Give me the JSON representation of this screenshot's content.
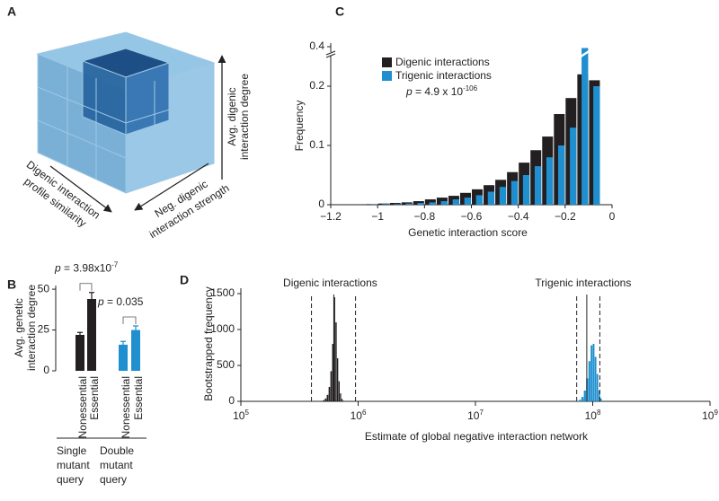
{
  "panel_labels": [
    "A",
    "B",
    "C",
    "D"
  ],
  "cube": {
    "vertical_axis": [
      "Avg. digenic",
      "interaction degree"
    ],
    "left_axis": [
      "Digenic interaction",
      "profile similarity"
    ],
    "right_axis": [
      "Neg. digenic",
      "interaction strength"
    ]
  },
  "chart_data": [
    {
      "type": "bar",
      "ylabel": [
        "Avg. genetic",
        "interaction degree"
      ],
      "ylim": [
        0,
        55
      ],
      "yticks": [
        0,
        25,
        50
      ],
      "groups": [
        {
          "label": [
            "Single",
            "mutant",
            "query"
          ],
          "categories": [
            "Nonessential",
            "Essential"
          ],
          "values": [
            22,
            44
          ],
          "errors": [
            1.5,
            4
          ],
          "color": "#231f20",
          "annotation": {
            "symbol": "p",
            "text": " = 3.98x10",
            "exponent": "-7"
          }
        },
        {
          "label": [
            "Double",
            "mutant",
            "query"
          ],
          "categories": [
            "Nonessential",
            "Essential"
          ],
          "values": [
            16,
            25
          ],
          "errors": [
            2,
            2.5
          ],
          "color": "#1f8fd0",
          "annotation": {
            "symbol": "p",
            "text": " = 0.035"
          }
        }
      ]
    },
    {
      "type": "histogram",
      "xlabel": "Genetic interaction score",
      "ylabel": "Frequency",
      "bins": [
        -1.05,
        -1,
        -0.95,
        -0.9,
        -0.85,
        -0.8,
        -0.75,
        -0.7,
        -0.65,
        -0.6,
        -0.55,
        -0.5,
        -0.45,
        -0.4,
        -0.35,
        -0.3,
        -0.25,
        -0.2,
        -0.15,
        -0.1,
        -0.05
      ],
      "series": [
        {
          "name": "Digenic interactions",
          "color": "#231f20",
          "values": [
            0.001,
            0.002,
            0.003,
            0.004,
            0.006,
            0.009,
            0.012,
            0.015,
            0.02,
            0.026,
            0.033,
            0.042,
            0.055,
            0.071,
            0.092,
            0.115,
            0.153,
            0.18,
            0.22,
            0.21
          ]
        },
        {
          "name": "Trigenic interactions",
          "color": "#1f8fd0",
          "values": [
            0.0005,
            0.001,
            0.001,
            0.002,
            0.003,
            0.004,
            0.006,
            0.009,
            0.012,
            0.016,
            0.022,
            0.03,
            0.04,
            0.05,
            0.065,
            0.08,
            0.1,
            0.13,
            0.38,
            0.2
          ]
        }
      ],
      "xlim": [
        -1.2,
        0
      ],
      "xticks": [
        {
          "value": -1.2,
          "label": "−1.2"
        },
        {
          "value": -1,
          "label": "−1"
        },
        {
          "value": -0.8,
          "label": "−0.8"
        },
        {
          "value": -0.6,
          "label": "−0.6"
        },
        {
          "value": -0.4,
          "label": "−0.4"
        },
        {
          "value": -0.2,
          "label": "−0.2"
        },
        0
      ],
      "ylim": [
        0,
        0.4
      ],
      "yticks": [
        0,
        0.1,
        0.2,
        0.4
      ],
      "y_break": true,
      "annotation": {
        "symbol": "p",
        "text": " = 4.9 x 10",
        "exponent": "-106"
      }
    },
    {
      "type": "histogram",
      "xscale": "log",
      "xlabel": "Estimate of global negative interaction network",
      "ylabel": "Bootstrapped frequency",
      "xlim": [
        100000,
        1000000000
      ],
      "xticks": [
        {
          "value": 100000,
          "label": "10",
          "sup": "5"
        },
        {
          "value": 1000000,
          "label": "10",
          "sup": "6"
        },
        {
          "value": 10000000,
          "label": "10",
          "sup": "7"
        },
        {
          "value": 100000000,
          "label": "10",
          "sup": "8"
        },
        {
          "value": 1000000000,
          "label": "10",
          "sup": "9"
        }
      ],
      "ylim": [
        0,
        1600
      ],
      "yticks": [
        0,
        500,
        1000,
        1500
      ],
      "series": [
        {
          "name": "Digenic interactions",
          "color": "#231f20",
          "median": 620000,
          "ci": [
            400000,
            950000
          ],
          "bins": [
            480000,
            500000,
            520000,
            540000,
            560000,
            580000,
            600000,
            620000,
            640000,
            660000,
            680000,
            700000,
            720000,
            740000,
            760000
          ],
          "values": [
            5,
            15,
            40,
            90,
            200,
            420,
            800,
            1450,
            1100,
            600,
            280,
            110,
            35,
            10
          ]
        },
        {
          "name": "Trigenic interactions",
          "color": "#1f8fd0",
          "median": 89000000,
          "ci": [
            73000000,
            115000000
          ],
          "bins": [
            72000000,
            76000000,
            80000000,
            84000000,
            88000000,
            92000000,
            96000000,
            100000000,
            104000000,
            108000000,
            112000000,
            116000000,
            120000000
          ],
          "values": [
            5,
            20,
            60,
            150,
            320,
            560,
            780,
            800,
            620,
            380,
            150,
            40
          ]
        }
      ]
    }
  ]
}
